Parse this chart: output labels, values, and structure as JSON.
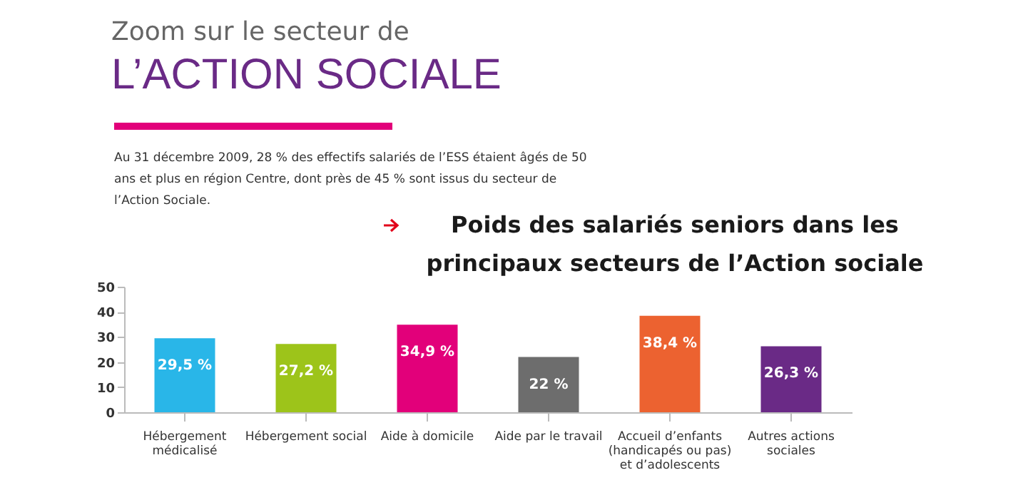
{
  "chart_data": {
    "type": "bar",
    "title": "Poids des salariés seniors dans les principaux secteurs de l’Action sociale",
    "annotations": [
      "Zoom sur le secteur de",
      "L’ACTION SOCIALE",
      "Au 31 décembre 2009, 28 % des effectifs salariés de l’ESS étaient âgés de 50 ans et plus en région Centre, dont près de 45 % sont issus du secteur de l’Action Sociale."
    ],
    "categories": [
      "Hébergement médicalisé",
      "Hébergement social",
      "Aide à domicile",
      "Aide par le travail",
      "Accueil d’enfants (handicapés ou pas) et d’adolescents",
      "Autres actions sociales"
    ],
    "values": [
      29.5,
      27.2,
      34.9,
      22,
      38.4,
      26.3
    ],
    "value_labels": [
      "29,5 %",
      "27,2 %",
      "34,9 %",
      "22 %",
      "38,4 %",
      "26,3 %"
    ],
    "colors": [
      "#29b6e8",
      "#9dc41a",
      "#e2007a",
      "#6d6d6d",
      "#ec6230",
      "#6a2a86"
    ],
    "ylim": [
      0,
      50
    ],
    "yticks": [
      0,
      10,
      20,
      30,
      40,
      50
    ]
  }
}
